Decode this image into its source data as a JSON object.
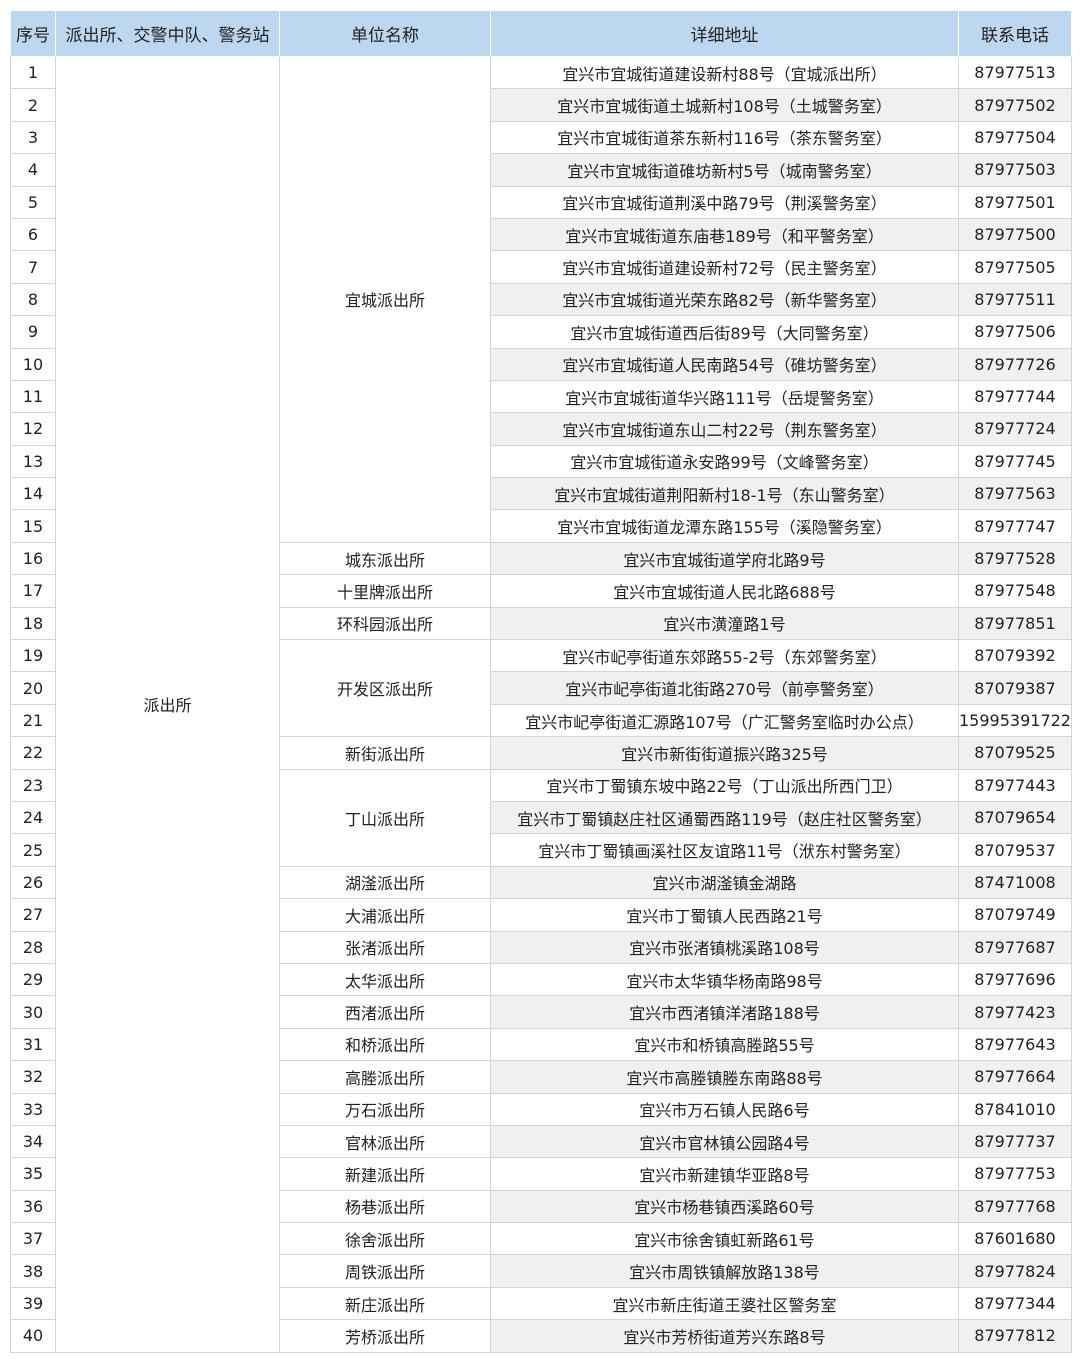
{
  "header": {
    "index": "序号",
    "category": "派出所、交警中队、警务站",
    "unit": "单位名称",
    "address": "详细地址",
    "phone": "联系电话"
  },
  "colors": {
    "header_bg": "#bdd7ee",
    "stripe_bg": "#f0f0f0",
    "border": "#d4d4d4"
  },
  "category": "派出所",
  "groups": [
    {
      "unit": "宜城派出所",
      "rows": [
        {
          "no": "1",
          "address": "宜兴市宜城街道建设新村88号（宜城派出所）",
          "phone": "87977513"
        },
        {
          "no": "2",
          "address": "宜兴市宜城街道土城新村108号（土城警务室）",
          "phone": "87977502"
        },
        {
          "no": "3",
          "address": "宜兴市宜城街道茶东新村116号（茶东警务室）",
          "phone": "87977504"
        },
        {
          "no": "4",
          "address": "宜兴市宜城街道碓坊新村5号（城南警务室）",
          "phone": "87977503"
        },
        {
          "no": "5",
          "address": "宜兴市宜城街道荆溪中路79号（荆溪警务室）",
          "phone": "87977501"
        },
        {
          "no": "6",
          "address": "宜兴市宜城街道东庙巷189号（和平警务室）",
          "phone": "87977500"
        },
        {
          "no": "7",
          "address": "宜兴市宜城街道建设新村72号（民主警务室）",
          "phone": "87977505"
        },
        {
          "no": "8",
          "address": "宜兴市宜城街道光荣东路82号（新华警务室）",
          "phone": "87977511"
        },
        {
          "no": "9",
          "address": "宜兴市宜城街道西后街89号（大同警务室）",
          "phone": "87977506"
        },
        {
          "no": "10",
          "address": "宜兴市宜城街道人民南路54号（碓坊警务室）",
          "phone": "87977726"
        },
        {
          "no": "11",
          "address": "宜兴市宜城街道华兴路111号（岳堤警务室）",
          "phone": "87977744"
        },
        {
          "no": "12",
          "address": "宜兴市宜城街道东山二村22号（荆东警务室）",
          "phone": "87977724"
        },
        {
          "no": "13",
          "address": "宜兴市宜城街道永安路99号（文峰警务室）",
          "phone": "87977745"
        },
        {
          "no": "14",
          "address": "宜兴市宜城街道荆阳新村18-1号（东山警务室）",
          "phone": "87977563"
        },
        {
          "no": "15",
          "address": "宜兴市宜城街道龙潭东路155号（溪隐警务室）",
          "phone": "87977747"
        }
      ]
    },
    {
      "unit": "城东派出所",
      "rows": [
        {
          "no": "16",
          "address": "宜兴市宜城街道学府北路9号",
          "phone": "87977528"
        }
      ]
    },
    {
      "unit": "十里牌派出所",
      "rows": [
        {
          "no": "17",
          "address": "宜兴市宜城街道人民北路688号",
          "phone": "87977548"
        }
      ]
    },
    {
      "unit": "环科园派出所",
      "rows": [
        {
          "no": "18",
          "address": "宜兴市潢潼路1号",
          "phone": "87977851"
        }
      ]
    },
    {
      "unit": "开发区派出所",
      "rows": [
        {
          "no": "19",
          "address": "宜兴市屺亭街道东郊路55-2号（东郊警务室）",
          "phone": "87079392"
        },
        {
          "no": "20",
          "address": "宜兴市屺亭街道北街路270号（前亭警务室）",
          "phone": "87079387"
        },
        {
          "no": "21",
          "address": "宜兴市屺亭街道汇源路107号（广汇警务室临时办公点）",
          "phone": "15995391722"
        }
      ]
    },
    {
      "unit": "新街派出所",
      "rows": [
        {
          "no": "22",
          "address": "宜兴市新街街道振兴路325号",
          "phone": "87079525"
        }
      ]
    },
    {
      "unit": "丁山派出所",
      "rows": [
        {
          "no": "23",
          "address": "宜兴市丁蜀镇东坡中路22号（丁山派出所西门卫）",
          "phone": "87977443"
        },
        {
          "no": "24",
          "address": "宜兴市丁蜀镇赵庄社区通蜀西路119号（赵庄社区警务室）",
          "phone": "87079654"
        },
        {
          "no": "25",
          "address": "宜兴市丁蜀镇画溪社区友谊路11号（洑东村警务室）",
          "phone": "87079537"
        }
      ]
    },
    {
      "unit": "湖滏派出所",
      "rows": [
        {
          "no": "26",
          "address": "宜兴市湖滏镇金湖路",
          "phone": "87471008"
        }
      ]
    },
    {
      "unit": "大浦派出所",
      "rows": [
        {
          "no": "27",
          "address": "宜兴市丁蜀镇人民西路21号",
          "phone": "87079749"
        }
      ]
    },
    {
      "unit": "张渚派出所",
      "rows": [
        {
          "no": "28",
          "address": "宜兴市张渚镇桃溪路108号",
          "phone": "87977687"
        }
      ]
    },
    {
      "unit": "太华派出所",
      "rows": [
        {
          "no": "29",
          "address": "宜兴市太华镇华杨南路98号",
          "phone": "87977696"
        }
      ]
    },
    {
      "unit": "西渚派出所",
      "rows": [
        {
          "no": "30",
          "address": "宜兴市西渚镇洋渚路188号",
          "phone": "87977423"
        }
      ]
    },
    {
      "unit": "和桥派出所",
      "rows": [
        {
          "no": "31",
          "address": "宜兴市和桥镇高塍路55号",
          "phone": "87977643"
        }
      ]
    },
    {
      "unit": "高塍派出所",
      "rows": [
        {
          "no": "32",
          "address": "宜兴市高塍镇塍东南路88号",
          "phone": "87977664"
        }
      ]
    },
    {
      "unit": "万石派出所",
      "rows": [
        {
          "no": "33",
          "address": "宜兴市万石镇人民路6号",
          "phone": "87841010"
        }
      ]
    },
    {
      "unit": "官林派出所",
      "rows": [
        {
          "no": "34",
          "address": "宜兴市官林镇公园路4号",
          "phone": "87977737"
        }
      ]
    },
    {
      "unit": "新建派出所",
      "rows": [
        {
          "no": "35",
          "address": "宜兴市新建镇华亚路8号",
          "phone": "87977753"
        }
      ]
    },
    {
      "unit": "杨巷派出所",
      "rows": [
        {
          "no": "36",
          "address": "宜兴市杨巷镇西溪路60号",
          "phone": "87977768"
        }
      ]
    },
    {
      "unit": "徐舍派出所",
      "rows": [
        {
          "no": "37",
          "address": "宜兴市徐舍镇虹新路61号",
          "phone": "87601680"
        }
      ]
    },
    {
      "unit": "周铁派出所",
      "rows": [
        {
          "no": "38",
          "address": "宜兴市周铁镇解放路138号",
          "phone": "87977824"
        }
      ]
    },
    {
      "unit": "新庄派出所",
      "rows": [
        {
          "no": "39",
          "address": "宜兴市新庄街道王婆社区警务室",
          "phone": "87977344"
        }
      ]
    },
    {
      "unit": "芳桥派出所",
      "rows": [
        {
          "no": "40",
          "address": "宜兴市芳桥街道芳兴东路8号",
          "phone": "87977812"
        }
      ]
    }
  ]
}
